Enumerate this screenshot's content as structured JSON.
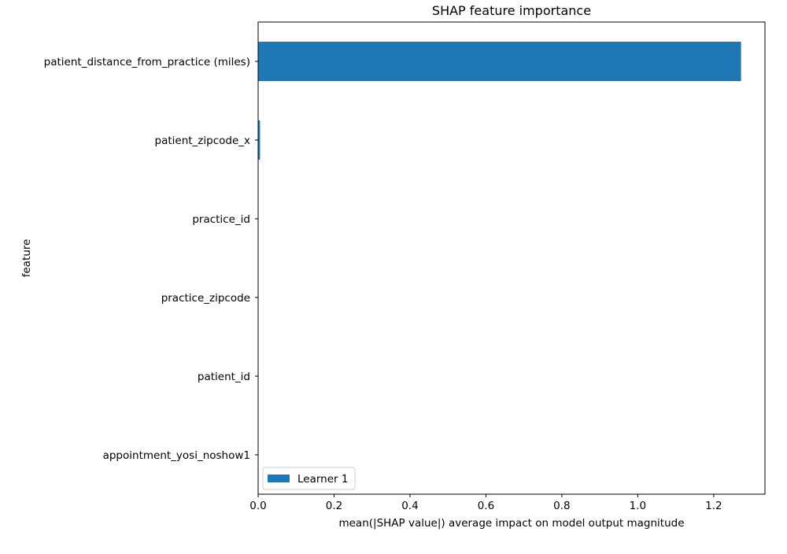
{
  "chart_data": {
    "type": "bar",
    "orientation": "horizontal",
    "title": "SHAP feature importance",
    "xlabel": "mean(|SHAP value|) average impact on model output magnitude",
    "ylabel": "feature",
    "xlim": [
      0,
      1.335
    ],
    "xticks": [
      0.0,
      0.2,
      0.4,
      0.6,
      0.8,
      1.0,
      1.2
    ],
    "xtick_labels": [
      "0.0",
      "0.2",
      "0.4",
      "0.6",
      "0.8",
      "1.0",
      "1.2"
    ],
    "categories": [
      "patient_distance_from_practice (miles)",
      "patient_zipcode_x",
      "practice_id",
      "practice_zipcode",
      "patient_id",
      "appointment_yosi_noshow1"
    ],
    "series": [
      {
        "name": "Learner 1",
        "color": "#1f77b4",
        "values": [
          1.272,
          0.005,
          0.0,
          0.0,
          0.0,
          0.0
        ]
      }
    ],
    "legend_position": "bottom-left",
    "grid": false
  }
}
